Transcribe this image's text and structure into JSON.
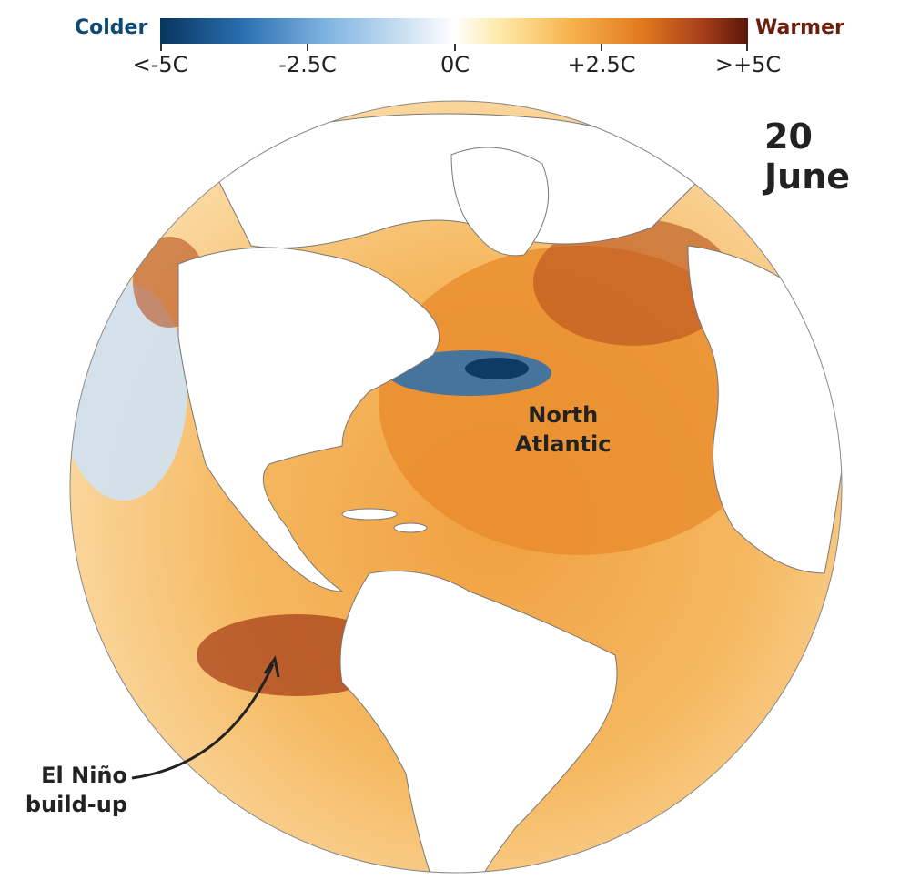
{
  "legend": {
    "colder_label": "Colder",
    "warmer_label": "Warmer",
    "ticks": [
      "<-5C",
      "-2.5C",
      "0C",
      "+2.5C",
      ">+5C"
    ],
    "colors": {
      "cold_end": "#08355d",
      "neutral": "#ffffff",
      "warm_end": "#5a1509"
    }
  },
  "date": "20 June",
  "annotations": {
    "north_atlantic": [
      "North",
      "Atlantic"
    ],
    "el_nino": [
      "El Niño",
      "build-up"
    ]
  }
}
